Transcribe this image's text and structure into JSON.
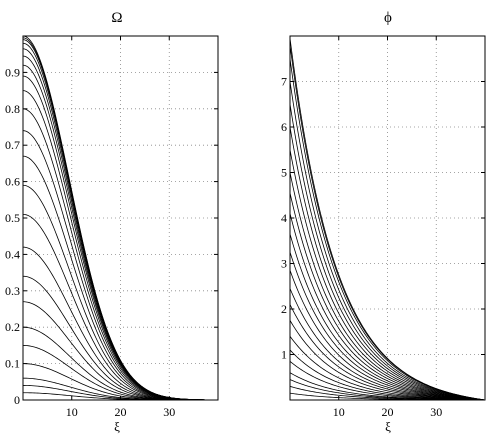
{
  "chart_data": [
    {
      "type": "line",
      "title": "Ω",
      "xlabel": "ξ",
      "ylabel": "",
      "xlim": [
        0,
        40
      ],
      "ylim": [
        0,
        1
      ],
      "xticks": [
        10,
        20,
        30
      ],
      "yticks": [
        0,
        0.1,
        0.2,
        0.3,
        0.4,
        0.5,
        0.6,
        0.7,
        0.8,
        0.9
      ],
      "xtick_labels": [
        "10",
        "20",
        "30"
      ],
      "ytick_labels": [
        "0",
        "0.1",
        "0.2",
        "0.3",
        "0.4",
        "0.5",
        "0.6",
        "0.7",
        "0.8",
        "0.9"
      ],
      "grid": true,
      "curve_family": "gaussian",
      "width": 9.5,
      "x": [
        0,
        2,
        4,
        6,
        8,
        10,
        12,
        14,
        16,
        18,
        20,
        22,
        24,
        26,
        28,
        30,
        32,
        34,
        36,
        38,
        40
      ],
      "series_peaks": [
        0.02,
        0.04,
        0.06,
        0.1,
        0.15,
        0.2,
        0.27,
        0.34,
        0.42,
        0.51,
        0.59,
        0.67,
        0.74,
        0.8,
        0.85,
        0.89,
        0.92,
        0.945,
        0.965,
        0.98,
        0.99,
        0.995,
        1.0
      ]
    },
    {
      "type": "line",
      "title": "ϕ",
      "xlabel": "ξ",
      "ylabel": "",
      "xlim": [
        0,
        40
      ],
      "ylim": [
        0,
        8
      ],
      "xticks": [
        10,
        20,
        30
      ],
      "yticks": [
        1,
        2,
        3,
        4,
        5,
        6,
        7
      ],
      "xtick_labels": [
        "10",
        "20",
        "30"
      ],
      "ytick_labels": [
        "1",
        "2",
        "3",
        "4",
        "5",
        "6",
        "7"
      ],
      "grid": true,
      "curve_family": "exponential",
      "scale": 7.5,
      "x": [
        0,
        2,
        4,
        6,
        8,
        10,
        12,
        14,
        16,
        18,
        20,
        22,
        24,
        26,
        28,
        30,
        32,
        34,
        36,
        38,
        40
      ],
      "series_peaks": [
        0.15,
        0.3,
        0.45,
        0.6,
        0.85,
        1.1,
        1.4,
        1.75,
        2.1,
        2.45,
        2.85,
        3.25,
        3.65,
        4.1,
        4.55,
        5.0,
        5.5,
        6.0,
        6.5,
        7.0,
        7.5,
        7.8,
        7.95
      ]
    }
  ]
}
